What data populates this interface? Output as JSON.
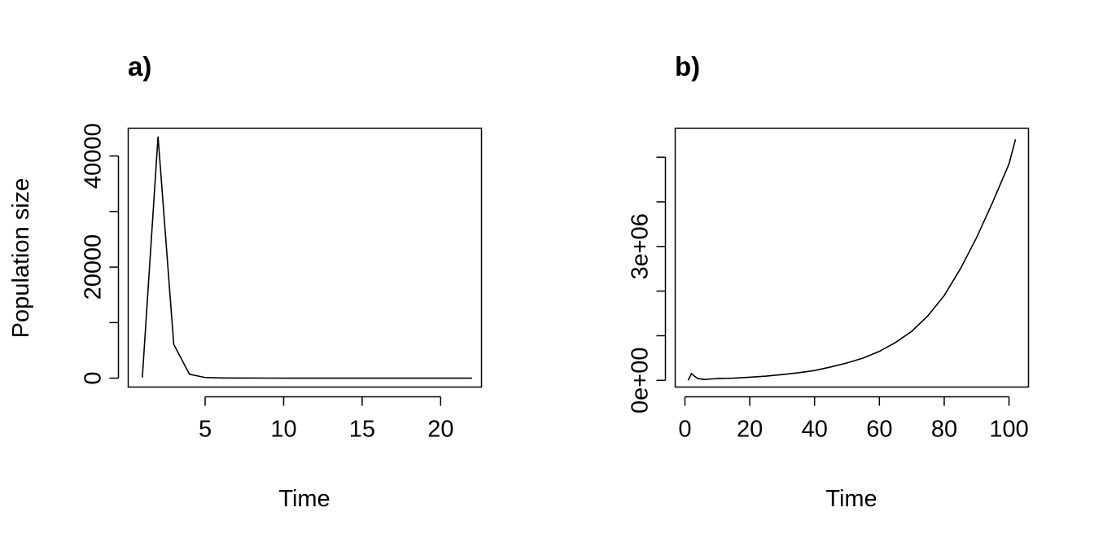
{
  "chart_data": [
    {
      "panel_label": "a)",
      "type": "line",
      "xlabel": "Time",
      "ylabel": "Population size",
      "xlim": [
        0.1,
        22.6
      ],
      "ylim": [
        -1600,
        45000
      ],
      "x_ticks": [
        5,
        10,
        15,
        20
      ],
      "x_tick_labels": [
        "5",
        "10",
        "15",
        "20"
      ],
      "y_ticks": [
        0,
        10000,
        20000,
        30000,
        40000
      ],
      "y_tick_labels": [
        "0",
        "",
        "20000",
        "",
        "40000"
      ],
      "series": [
        {
          "x": [
            1,
            2,
            3,
            4,
            5,
            6,
            7,
            8,
            9,
            10,
            11,
            12,
            13,
            14,
            15,
            16,
            17,
            18,
            19,
            20,
            21,
            22
          ],
          "y": [
            100,
            43500,
            6100,
            700,
            120,
            40,
            20,
            15,
            10,
            8,
            6,
            5,
            4,
            3,
            3,
            2,
            2,
            2,
            1,
            1,
            1,
            1
          ]
        }
      ]
    },
    {
      "panel_label": "b)",
      "type": "line",
      "xlabel": "Time",
      "ylabel": "",
      "xlim": [
        -3,
        106
      ],
      "ylim": [
        -150000,
        5650000
      ],
      "x_ticks": [
        0,
        20,
        40,
        60,
        80,
        100
      ],
      "x_tick_labels": [
        "0",
        "20",
        "40",
        "60",
        "80",
        "100"
      ],
      "y_ticks": [
        0,
        1000000,
        2000000,
        3000000,
        4000000,
        5000000
      ],
      "y_tick_labels": [
        "0e+00",
        "",
        "",
        "3e+06",
        "",
        ""
      ],
      "series": [
        {
          "x": [
            1,
            2,
            3,
            4,
            6,
            8,
            10,
            15,
            20,
            25,
            30,
            35,
            40,
            45,
            50,
            55,
            60,
            65,
            70,
            75,
            80,
            85,
            90,
            95,
            100,
            102
          ],
          "y": [
            0,
            150000,
            90000,
            40000,
            20000,
            30000,
            40000,
            50000,
            70000,
            95000,
            130000,
            170000,
            220000,
            300000,
            390000,
            500000,
            650000,
            850000,
            1100000,
            1450000,
            1900000,
            2500000,
            3200000,
            4000000,
            4850000,
            5400000
          ]
        }
      ]
    }
  ]
}
